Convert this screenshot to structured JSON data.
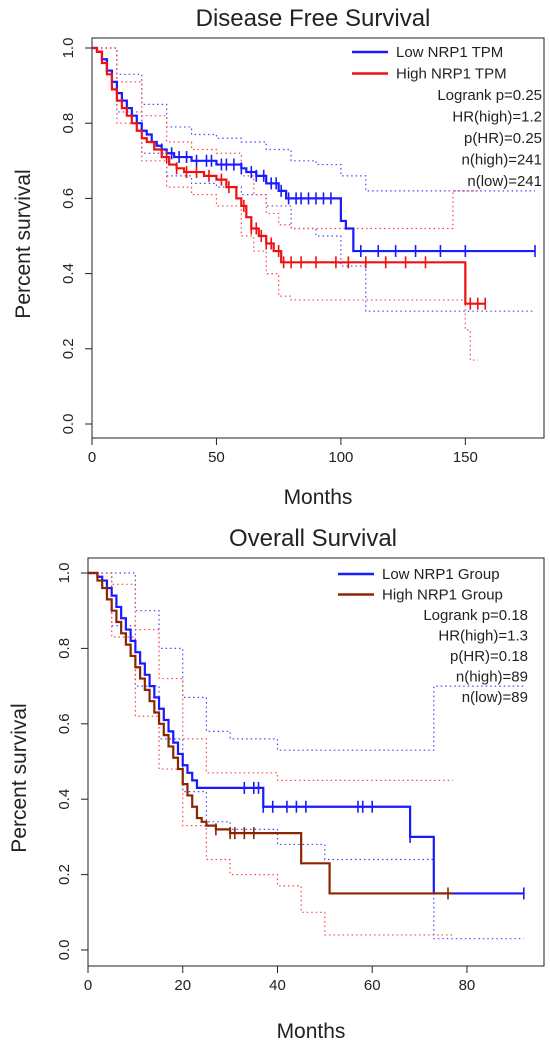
{
  "chart_data": [
    {
      "type": "line",
      "title": "Disease Free Survival",
      "xlabel": "Months",
      "ylabel": "Percent survival",
      "xlim": [
        0,
        180
      ],
      "ylim": [
        0,
        1.05
      ],
      "xticks": [
        0,
        50,
        100,
        150
      ],
      "yticks": [
        0.0,
        0.2,
        0.4,
        0.6,
        0.8,
        1.0
      ],
      "xtick_labels": [
        "0",
        "50",
        "100",
        "150"
      ],
      "ytick_labels": [
        "0.0",
        "0.2",
        "0.4",
        "0.6",
        "0.8",
        "1.0"
      ],
      "grid": false,
      "legend_position": "top-right",
      "stats": [
        "Logrank p=0.25",
        "HR(high)=1.2",
        "p(HR)=0.25",
        "n(high)=241",
        "n(low)=241"
      ],
      "series": [
        {
          "name": "Low NRP1 TPM",
          "color": "#1a1aff",
          "style": "step",
          "x": [
            0,
            2,
            4,
            6,
            8,
            10,
            12,
            14,
            16,
            18,
            20,
            22,
            24,
            26,
            28,
            30,
            33,
            36,
            40,
            45,
            50,
            55,
            60,
            62,
            66,
            70,
            75,
            78,
            85,
            100,
            102,
            105,
            178
          ],
          "y": [
            1.0,
            0.99,
            0.97,
            0.94,
            0.91,
            0.88,
            0.86,
            0.84,
            0.82,
            0.8,
            0.78,
            0.77,
            0.75,
            0.74,
            0.73,
            0.72,
            0.71,
            0.71,
            0.7,
            0.7,
            0.69,
            0.69,
            0.68,
            0.67,
            0.66,
            0.64,
            0.62,
            0.6,
            0.6,
            0.54,
            0.52,
            0.46,
            0.46
          ],
          "censor_x": [
            28,
            32,
            35,
            38,
            42,
            46,
            48,
            52,
            54,
            57,
            60,
            64,
            66,
            69,
            72,
            74,
            76,
            79,
            82,
            84,
            87,
            90,
            93,
            96,
            108,
            115,
            122,
            130,
            140,
            150,
            178
          ]
        },
        {
          "name": "High NRP1 TPM",
          "color": "#ee1111",
          "style": "step",
          "x": [
            0,
            2,
            4,
            6,
            8,
            10,
            12,
            14,
            16,
            18,
            20,
            22,
            25,
            28,
            31,
            34,
            37,
            40,
            45,
            50,
            54,
            58,
            60,
            62,
            64,
            67,
            70,
            73,
            76,
            80,
            150,
            152,
            158
          ],
          "y": [
            1.0,
            0.99,
            0.96,
            0.93,
            0.89,
            0.86,
            0.84,
            0.82,
            0.8,
            0.78,
            0.76,
            0.75,
            0.73,
            0.71,
            0.69,
            0.68,
            0.67,
            0.67,
            0.66,
            0.65,
            0.63,
            0.6,
            0.58,
            0.55,
            0.52,
            0.5,
            0.48,
            0.46,
            0.43,
            0.43,
            0.32,
            0.32,
            0.32
          ],
          "censor_x": [
            30,
            34,
            38,
            42,
            47,
            52,
            55,
            61,
            64,
            66,
            68,
            70,
            72,
            75,
            77,
            80,
            84,
            90,
            98,
            103,
            110,
            118,
            126,
            134,
            152,
            155,
            158
          ]
        }
      ],
      "ci_bands": [
        {
          "color": "#4646ff",
          "x": [
            0,
            10,
            20,
            30,
            40,
            50,
            60,
            70,
            80,
            90,
            100,
            110,
            130,
            150,
            178
          ],
          "upper": [
            1.0,
            0.93,
            0.85,
            0.79,
            0.77,
            0.76,
            0.75,
            0.73,
            0.7,
            0.69,
            0.66,
            0.62,
            0.62,
            0.62,
            0.62
          ],
          "lower": [
            1.0,
            0.83,
            0.72,
            0.66,
            0.64,
            0.63,
            0.61,
            0.58,
            0.52,
            0.5,
            0.42,
            0.3,
            0.3,
            0.3,
            0.3
          ]
        },
        {
          "color": "#ff4444",
          "x": [
            0,
            10,
            20,
            30,
            40,
            50,
            60,
            65,
            70,
            75,
            80,
            100,
            140,
            145,
            150,
            152,
            155
          ],
          "upper": [
            1.0,
            0.91,
            0.82,
            0.75,
            0.73,
            0.72,
            0.66,
            0.61,
            0.56,
            0.53,
            0.52,
            0.52,
            0.52,
            0.62,
            0.62,
            0.62,
            0.62
          ],
          "lower": [
            1.0,
            0.8,
            0.7,
            0.63,
            0.61,
            0.58,
            0.5,
            0.46,
            0.4,
            0.34,
            0.33,
            0.33,
            0.33,
            0.33,
            0.25,
            0.17,
            0.17
          ]
        }
      ]
    },
    {
      "type": "line",
      "title": "Overall Survival",
      "xlabel": "Months",
      "ylabel": "Percent survival",
      "xlim": [
        0,
        95
      ],
      "ylim": [
        0,
        1.05
      ],
      "xticks": [
        0,
        20,
        40,
        60,
        80
      ],
      "yticks": [
        0.0,
        0.2,
        0.4,
        0.6,
        0.8,
        1.0
      ],
      "xtick_labels": [
        "0",
        "20",
        "40",
        "60",
        "80"
      ],
      "ytick_labels": [
        "0.0",
        "0.2",
        "0.4",
        "0.6",
        "0.8",
        "1.0"
      ],
      "grid": false,
      "legend_position": "top-right",
      "stats": [
        "Logrank p=0.18",
        "HR(high)=1.3",
        "p(HR)=0.18",
        "n(high)=89",
        "n(low)=89"
      ],
      "series": [
        {
          "name": "Low NRP1 Group",
          "color": "#1a1aff",
          "style": "step",
          "x": [
            0,
            2,
            3,
            4,
            5,
            6,
            7,
            8,
            9,
            10,
            11,
            12,
            13,
            14,
            15,
            16,
            17,
            18,
            19,
            20,
            21,
            22,
            23,
            24,
            25,
            37,
            38,
            68,
            72,
            73,
            92
          ],
          "y": [
            1.0,
            0.99,
            0.98,
            0.96,
            0.94,
            0.91,
            0.88,
            0.85,
            0.82,
            0.79,
            0.76,
            0.73,
            0.7,
            0.67,
            0.64,
            0.61,
            0.58,
            0.55,
            0.52,
            0.49,
            0.47,
            0.45,
            0.43,
            0.43,
            0.43,
            0.38,
            0.38,
            0.3,
            0.3,
            0.15,
            0.15
          ],
          "censor_x": [
            33,
            35,
            36,
            37,
            39,
            42,
            44,
            46,
            57,
            58,
            60,
            68,
            92
          ]
        },
        {
          "name": "High NRP1 Group",
          "color": "#8b2500",
          "style": "step",
          "x": [
            0,
            2,
            3,
            4,
            5,
            6,
            7,
            8,
            9,
            10,
            11,
            12,
            13,
            14,
            15,
            16,
            17,
            18,
            19,
            20,
            21,
            22,
            23,
            24,
            25,
            27,
            30,
            45,
            51,
            77
          ],
          "y": [
            1.0,
            0.98,
            0.96,
            0.93,
            0.9,
            0.87,
            0.84,
            0.81,
            0.78,
            0.75,
            0.72,
            0.69,
            0.66,
            0.63,
            0.6,
            0.57,
            0.54,
            0.51,
            0.48,
            0.44,
            0.41,
            0.38,
            0.35,
            0.34,
            0.33,
            0.32,
            0.31,
            0.23,
            0.15,
            0.15
          ],
          "censor_x": [
            27,
            30,
            31,
            33,
            35,
            76
          ]
        }
      ],
      "ci_bands": [
        {
          "color": "#4646ff",
          "x": [
            0,
            5,
            10,
            15,
            20,
            25,
            30,
            40,
            50,
            60,
            70,
            72,
            73,
            75,
            85,
            92
          ],
          "upper": [
            1.0,
            1.0,
            0.9,
            0.8,
            0.67,
            0.58,
            0.56,
            0.53,
            0.53,
            0.53,
            0.53,
            0.53,
            0.7,
            0.7,
            0.7,
            0.7
          ],
          "lower": [
            1.0,
            0.86,
            0.7,
            0.56,
            0.42,
            0.34,
            0.32,
            0.28,
            0.24,
            0.24,
            0.24,
            0.24,
            0.03,
            0.03,
            0.03,
            0.03
          ]
        },
        {
          "color": "#ff4444",
          "x": [
            0,
            5,
            10,
            15,
            20,
            25,
            30,
            40,
            45,
            50,
            51,
            60,
            70,
            77
          ],
          "upper": [
            1.0,
            0.97,
            0.85,
            0.72,
            0.56,
            0.47,
            0.47,
            0.45,
            0.45,
            0.45,
            0.45,
            0.45,
            0.45,
            0.45
          ],
          "lower": [
            1.0,
            0.83,
            0.62,
            0.48,
            0.33,
            0.24,
            0.2,
            0.17,
            0.1,
            0.04,
            0.04,
            0.04,
            0.04,
            0.04
          ]
        }
      ]
    }
  ]
}
